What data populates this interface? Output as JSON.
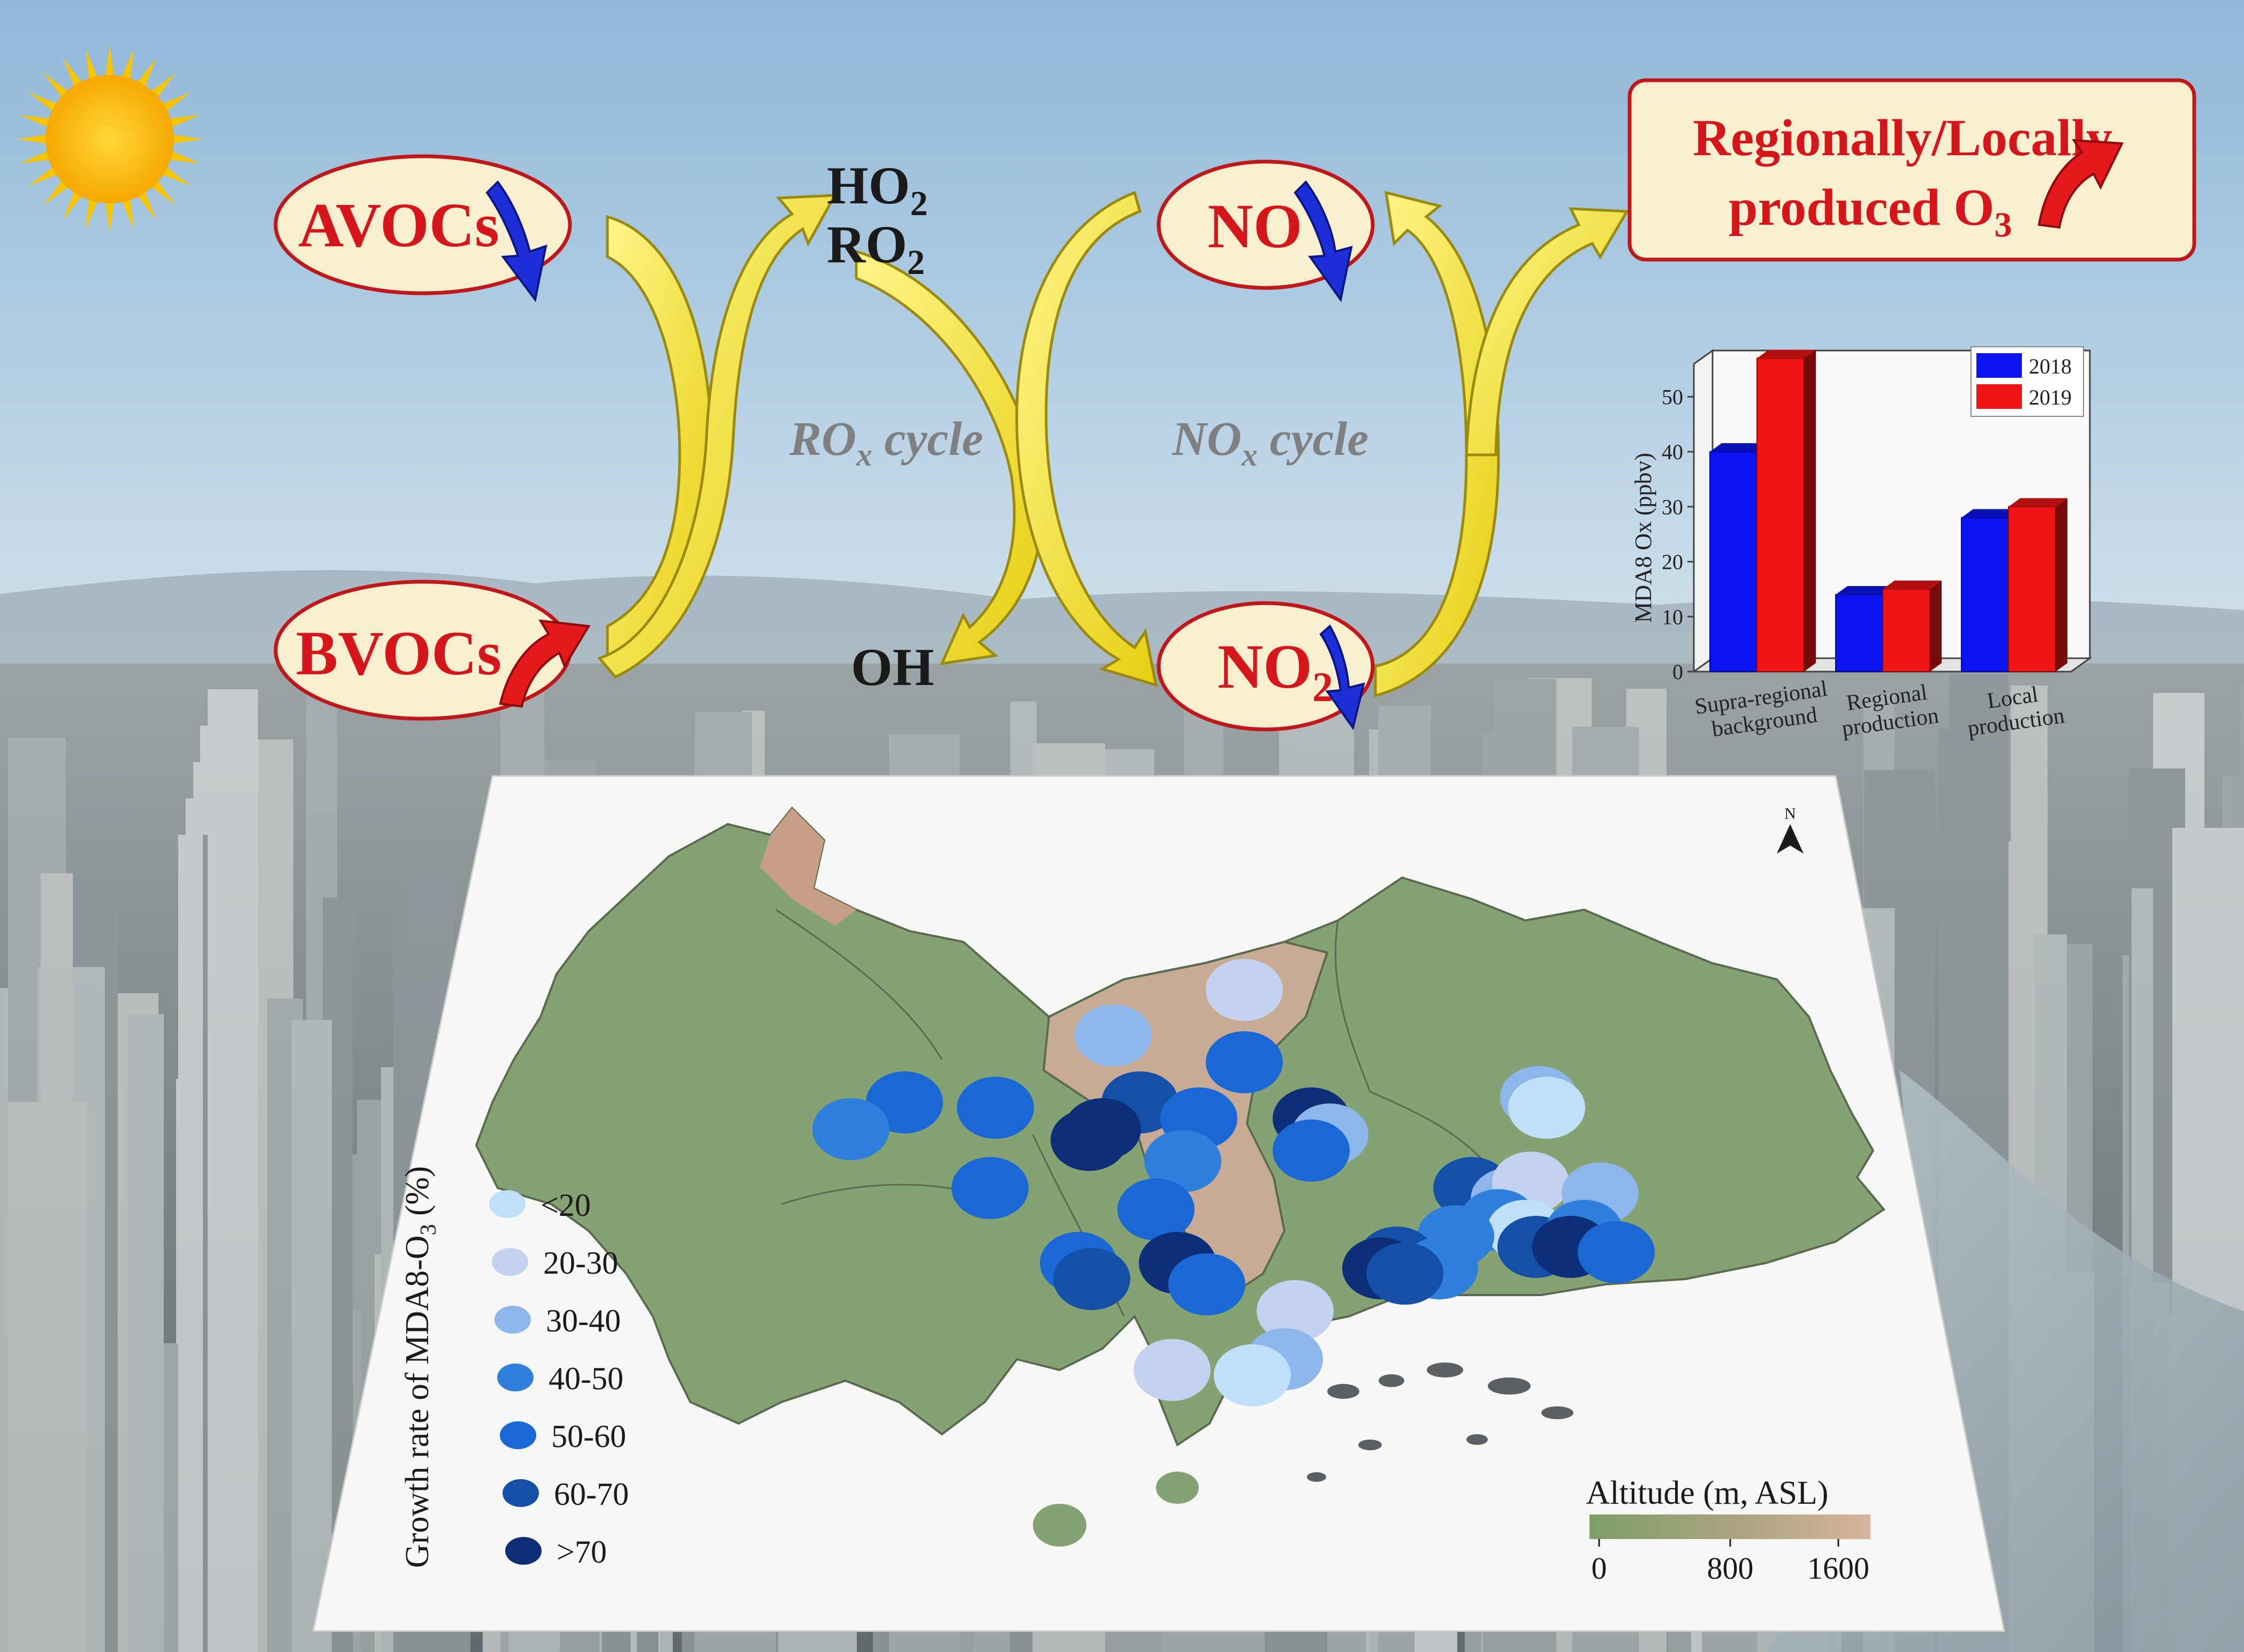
{
  "chem": {
    "avocs": "AVOCs",
    "bvocs": "BVOCs",
    "ho2_main": "HO",
    "ho2_sub": "2",
    "ro2_main": "RO",
    "ro2_sub": "2",
    "oh": "OH",
    "no": "NO",
    "no2_main": "NO",
    "no2_sub": "2",
    "rox_main": "RO",
    "rox_sub": "x",
    "rox_tail": " cycle",
    "nox_main": "NO",
    "nox_sub": "x",
    "nox_tail": " cycle",
    "ozone_line1": "Regionally/Locally",
    "ozone_line2_main": "produced O",
    "ozone_line2_sub": "3"
  },
  "colors": {
    "trend_down": "#1d2fd8",
    "trend_up": "#e5181b",
    "label_red": "#d5161b",
    "oval_fill": "#f7efcf",
    "arrow_yellow": "#f2e21c"
  },
  "chart_data": {
    "type": "bar",
    "categories": [
      "Supra-regional background",
      "Regional production",
      "Local production"
    ],
    "category_lines": [
      [
        "Supra-regional",
        "background"
      ],
      [
        "Regional",
        "production"
      ],
      [
        "Local",
        "production"
      ]
    ],
    "series": [
      {
        "name": "2018",
        "values": [
          40,
          14,
          28
        ],
        "color": "#0a14f0"
      },
      {
        "name": "2019",
        "values": [
          57,
          15,
          30
        ],
        "color": "#f01414"
      }
    ],
    "ylabel": "MDA8 Ox (ppbv)",
    "ylim": [
      0,
      55
    ],
    "yticks": [
      0,
      10,
      20,
      30,
      40,
      50
    ],
    "legend": "top-right"
  },
  "map": {
    "north": "N",
    "legend_title_main": "Growth rate of MDA8-O",
    "legend_title_sub": "3",
    "legend_title_tail": " (%)",
    "classes": [
      {
        "label": "<20",
        "color": "#bfe0f8"
      },
      {
        "label": "20-30",
        "color": "#c3d2ee"
      },
      {
        "label": "30-40",
        "color": "#8db6ea"
      },
      {
        "label": "40-50",
        "color": "#2f7fdc"
      },
      {
        "label": "50-60",
        "color": "#1a67d6"
      },
      {
        "label": "60-70",
        "color": "#1450a8"
      },
      {
        "label": ">70",
        "color": "#0c2f78"
      }
    ],
    "altitude_title": "Altitude (m, ASL)",
    "altitude_ticks": [
      "0",
      "800",
      "1600"
    ],
    "altitude_colors": [
      "#7f9e6b",
      "#a9a37f",
      "#d7b49e"
    ]
  }
}
